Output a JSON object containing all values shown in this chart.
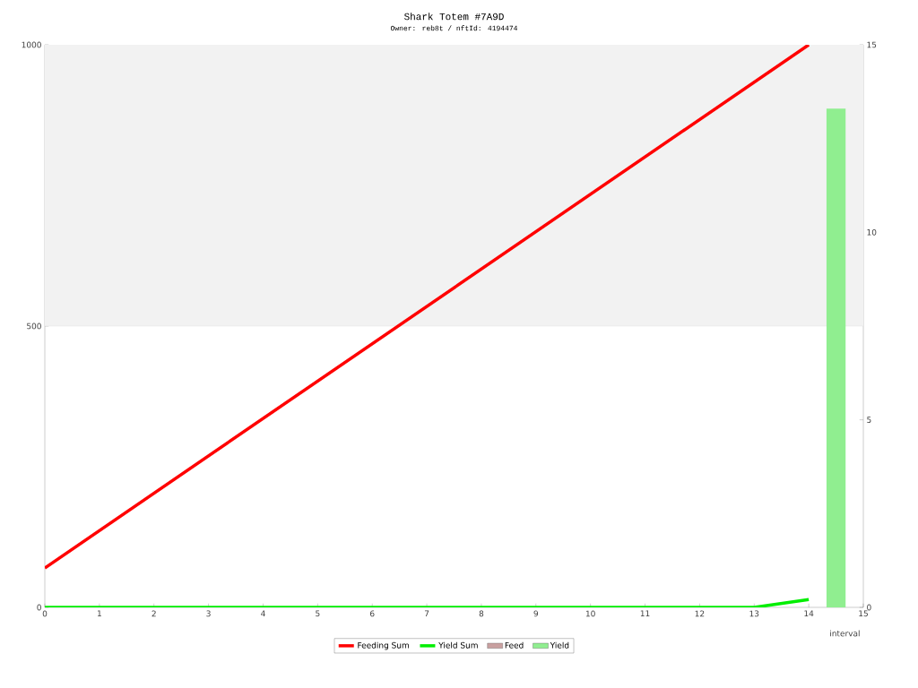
{
  "chart_data": {
    "type": "line",
    "title": "Shark Totem #7A9D",
    "subtitle": "Owner: reb8t / nftId: 4194474",
    "xlabel": "interval",
    "xlim": [
      0,
      15
    ],
    "xticks": [
      0,
      1,
      2,
      3,
      4,
      5,
      6,
      7,
      8,
      9,
      10,
      11,
      12,
      13,
      14,
      15
    ],
    "ylim": [
      0,
      1000
    ],
    "yticks": [
      0,
      500,
      1000
    ],
    "y2lim": [
      0,
      15
    ],
    "y2ticks": [
      0,
      5,
      10,
      15
    ],
    "bands": [
      {
        "axis": "y",
        "from": 500,
        "to": 1000,
        "color": "#f2f2f2"
      }
    ],
    "legend": "bottom",
    "marker": "none",
    "series": [
      {
        "name": "Feeding Sum",
        "color": "#ff0000",
        "x": [
          0,
          14
        ],
        "values": [
          70,
          1000
        ]
      },
      {
        "name": "Yield Sum",
        "color": "#00ee00",
        "x": [
          0,
          13,
          14
        ],
        "values": [
          0,
          0,
          14
        ]
      },
      {
        "name": "Feed",
        "type": "bar",
        "axis": "y2",
        "color": "#c9a0a0",
        "x": [
          14.5
        ],
        "values": [
          0
        ]
      },
      {
        "name": "Yield",
        "type": "bar",
        "axis": "y2",
        "color": "#90ee90",
        "x": [
          14.5
        ],
        "values": [
          13.3
        ]
      }
    ]
  }
}
